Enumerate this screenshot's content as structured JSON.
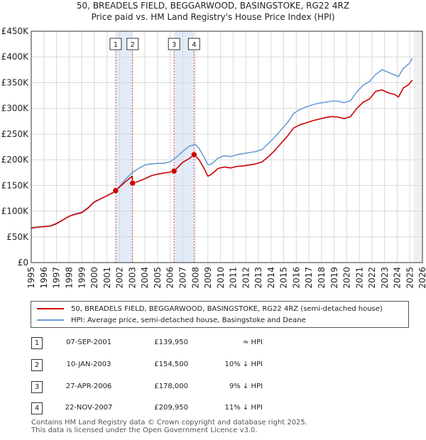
{
  "title_line1": "50, BREADELS FIELD, BEGGARWOOD, BASINGSTOKE, RG22 4RZ",
  "title_line2": "Price paid vs. HM Land Registry's House Price Index (HPI)",
  "chart_data": {
    "type": "line",
    "ylim": [
      0,
      450000
    ],
    "xlim": [
      1995,
      2026
    ],
    "y_ticks": [
      0,
      50000,
      100000,
      150000,
      200000,
      250000,
      300000,
      350000,
      400000,
      450000
    ],
    "y_tick_labels": [
      "£0",
      "£50K",
      "£100K",
      "£150K",
      "£200K",
      "£250K",
      "£300K",
      "£350K",
      "£400K",
      "£450K"
    ],
    "x_ticks": [
      1995,
      1996,
      1997,
      1998,
      1999,
      2000,
      2001,
      2002,
      2003,
      2004,
      2005,
      2006,
      2007,
      2008,
      2009,
      2010,
      2011,
      2012,
      2013,
      2014,
      2015,
      2016,
      2017,
      2018,
      2019,
      2020,
      2021,
      2022,
      2023,
      2024,
      2025,
      2026
    ],
    "x_tick_labels": [
      "1995",
      "1996",
      "1997",
      "1998",
      "1999",
      "2000",
      "2001",
      "2002",
      "2003",
      "2004",
      "2005",
      "2006",
      "2007",
      "2008",
      "2009",
      "2010",
      "2011",
      "2012",
      "2013",
      "2014",
      "2015",
      "2016",
      "2017",
      "2018",
      "2019",
      "2020",
      "2021",
      "2022",
      "2023",
      "2024",
      "2025",
      "2026"
    ],
    "grid": true,
    "shaded_spans": [
      [
        2001.69,
        2003.03
      ],
      [
        2006.32,
        2007.9
      ]
    ],
    "forecast_start": 2025.3,
    "series": [
      {
        "name": "50, BREADELS FIELD, BEGGARWOOD, BASINGSTOKE, RG22 4RZ (semi-detached house)",
        "color": "#cc0000",
        "x": [
          1995,
          1995.5,
          1996,
          1996.5,
          1997,
          1997.5,
          1998,
          1998.5,
          1999,
          1999.5,
          2000,
          2000.5,
          2001,
          2001.5,
          2001.69,
          2002,
          2002.5,
          2003,
          2003.03,
          2003.5,
          2004,
          2004.5,
          2005,
          2005.5,
          2006,
          2006.32,
          2006.6,
          2007,
          2007.5,
          2007.9,
          2008.3,
          2008.7,
          2009,
          2009.3,
          2009.8,
          2010.3,
          2010.8,
          2011.3,
          2011.8,
          2012.3,
          2012.8,
          2013.3,
          2013.8,
          2014.3,
          2014.8,
          2015.3,
          2015.8,
          2016.3,
          2016.8,
          2017.3,
          2017.8,
          2018.3,
          2018.8,
          2019.3,
          2019.8,
          2020.3,
          2020.8,
          2021.3,
          2021.8,
          2022.3,
          2022.8,
          2023.3,
          2023.8,
          2024.1,
          2024.5,
          2024.9,
          2025.2
        ],
        "values": [
          67000,
          69000,
          70000,
          71000,
          76000,
          83000,
          90000,
          94000,
          97000,
          106000,
          118000,
          124000,
          130000,
          136000,
          139950,
          147000,
          158000,
          168000,
          154500,
          158000,
          163000,
          169000,
          172000,
          174000,
          176000,
          178000,
          185000,
          195000,
          202000,
          209950,
          200000,
          183000,
          168000,
          172000,
          183000,
          186000,
          184000,
          187000,
          188000,
          190000,
          192000,
          196000,
          206000,
          218000,
          232000,
          246000,
          262000,
          268000,
          272000,
          276000,
          279000,
          282000,
          284000,
          283000,
          280000,
          284000,
          300000,
          312000,
          318000,
          333000,
          336000,
          330000,
          327000,
          322000,
          340000,
          346000,
          355000
        ]
      },
      {
        "name": "HPI: Average price, semi-detached house, Basingstoke and Deane",
        "color": "#6a9ed8",
        "x": [
          1995,
          1995.5,
          1996,
          1996.5,
          1997,
          1997.5,
          1998,
          1998.5,
          1999,
          1999.5,
          2000,
          2000.5,
          2001,
          2001.5,
          2002,
          2002.5,
          2003,
          2003.5,
          2004,
          2004.5,
          2005,
          2005.5,
          2006,
          2006.5,
          2007,
          2007.5,
          2008,
          2008.3,
          2008.7,
          2009,
          2009.3,
          2009.8,
          2010.3,
          2010.8,
          2011.3,
          2011.8,
          2012.3,
          2012.8,
          2013.3,
          2013.8,
          2014.3,
          2014.8,
          2015.3,
          2015.8,
          2016.3,
          2016.8,
          2017.3,
          2017.8,
          2018.3,
          2018.8,
          2019.3,
          2019.8,
          2020.3,
          2020.8,
          2021.3,
          2021.8,
          2022.3,
          2022.8,
          2023.3,
          2023.8,
          2024.1,
          2024.5,
          2024.9,
          2025.2
        ],
        "values": [
          68000,
          69000,
          70000,
          71000,
          75000,
          83000,
          90000,
          95000,
          98000,
          107000,
          118000,
          124000,
          130000,
          137000,
          148000,
          163000,
          175000,
          183000,
          190000,
          192000,
          193000,
          193000,
          196000,
          205000,
          216000,
          226000,
          230000,
          222000,
          205000,
          190000,
          192000,
          203000,
          208000,
          206000,
          210000,
          212000,
          214000,
          216000,
          220000,
          232000,
          244000,
          258000,
          272000,
          290000,
          298000,
          303000,
          307000,
          310000,
          312000,
          314000,
          314000,
          311000,
          315000,
          332000,
          345000,
          352000,
          366000,
          375000,
          370000,
          365000,
          362000,
          378000,
          386000,
          397000
        ]
      }
    ],
    "sale_markers": [
      {
        "label": "1",
        "x": 2001.69,
        "value": 139950
      },
      {
        "label": "2",
        "x": 2003.03,
        "value": 154500
      },
      {
        "label": "3",
        "x": 2006.32,
        "value": 178000
      },
      {
        "label": "4",
        "x": 2007.9,
        "value": 209950
      }
    ]
  },
  "legend": {
    "red_label": "50, BREADELS FIELD, BEGGARWOOD, BASINGSTOKE, RG22 4RZ (semi-detached house)",
    "blue_label": "HPI: Average price, semi-detached house, Basingstoke and Deane"
  },
  "sales": [
    {
      "num": "1",
      "date": "07-SEP-2001",
      "price": "£139,950",
      "hpi": "≈ HPI"
    },
    {
      "num": "2",
      "date": "10-JAN-2003",
      "price": "£154,500",
      "hpi": "10% ↓ HPI"
    },
    {
      "num": "3",
      "date": "27-APR-2006",
      "price": "£178,000",
      "hpi": "9% ↓ HPI"
    },
    {
      "num": "4",
      "date": "22-NOV-2007",
      "price": "£209,950",
      "hpi": "11% ↓ HPI"
    }
  ],
  "footer_line1": "Contains HM Land Registry data © Crown copyright and database right 2025.",
  "footer_line2": "This data is licensed under the Open Government Licence v3.0."
}
